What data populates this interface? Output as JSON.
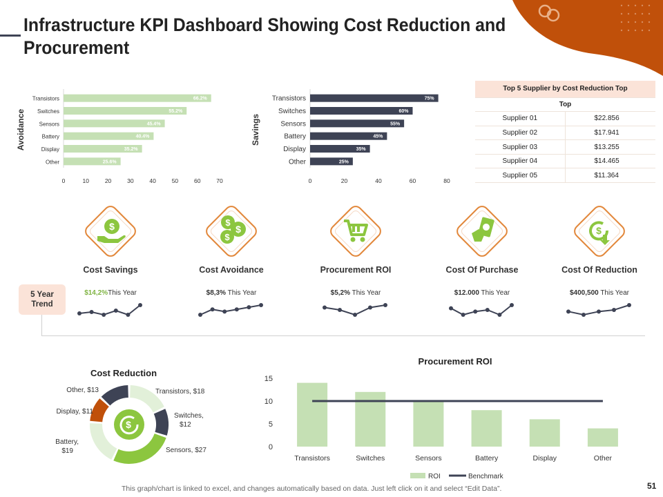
{
  "title": "Infrastructure KPI Dashboard Showing Cost Reduction and Procurement",
  "colors": {
    "accent": "#c0500a",
    "green": "#a9d18e",
    "lightGreen": "#c5e0b4",
    "navy": "#3e4355",
    "peach": "#fbe3d8",
    "orangeBorder": "#e2873a"
  },
  "chart_data": [
    {
      "type": "bar",
      "orientation": "horizontal",
      "ylabel": "Avoidance",
      "categories": [
        "Transistors",
        "Switches",
        "Sensors",
        "Battery",
        "Display",
        "Other"
      ],
      "values": [
        66.2,
        55.2,
        45.4,
        40.4,
        35.2,
        25.6
      ],
      "data_labels": [
        "66.2%",
        "55.2%",
        "45.4%",
        "40.4%",
        "35.2%",
        "25.6%"
      ],
      "xticks": [
        "0",
        "10",
        "20",
        "30",
        "40",
        "50",
        "60",
        "70"
      ],
      "xlim": [
        0,
        70
      ],
      "color": "#c5e0b4"
    },
    {
      "type": "bar",
      "orientation": "horizontal",
      "ylabel": "Savings",
      "categories": [
        "Transistors",
        "Switches",
        "Sensors",
        "Battery",
        "Display",
        "Other"
      ],
      "values": [
        75,
        60,
        55,
        45,
        35,
        25
      ],
      "data_labels": [
        "75%",
        "60%",
        "55%",
        "45%",
        "35%",
        "25%"
      ],
      "xticks": [
        "0",
        "20",
        "40",
        "60",
        "80"
      ],
      "xlim": [
        0,
        80
      ],
      "color": "#3e4355"
    },
    {
      "type": "pie",
      "title": "Cost Reduction",
      "slices": [
        {
          "label": "Transistors, $18",
          "value": 18,
          "color": "#e2f0d9"
        },
        {
          "label": "Switches, $12",
          "value": 12,
          "color": "#3e4355"
        },
        {
          "label": "Sensors, $27",
          "value": 27,
          "color": "#8cc63f"
        },
        {
          "label": "Battery, $19",
          "value": 19,
          "color": "#e2f0d9"
        },
        {
          "label": "Display, $11",
          "value": 11,
          "color": "#c0500a"
        },
        {
          "label": "Other, $13",
          "value": 13,
          "color": "#3e4355"
        }
      ]
    },
    {
      "type": "bar",
      "title": "Procurement ROI",
      "categories": [
        "Transistors",
        "Switches",
        "Sensors",
        "Battery",
        "Display",
        "Other"
      ],
      "series": [
        {
          "name": "ROI",
          "type": "bar",
          "values": [
            14,
            12,
            10,
            8,
            6,
            4
          ],
          "color": "#c5e0b4"
        },
        {
          "name": "Benchmark",
          "type": "line",
          "values": [
            10,
            10,
            10,
            10,
            10,
            10
          ],
          "color": "#3e4355"
        }
      ],
      "yticks": [
        "0",
        "5",
        "10",
        "15"
      ],
      "ylim": [
        0,
        15
      ]
    }
  ],
  "supplier_table": {
    "title": "Top 5 Supplier by Cost Reduction Top",
    "subheader": "Top",
    "rows": [
      {
        "name": "Supplier 01",
        "value": "$22.856"
      },
      {
        "name": "Supplier 02",
        "value": "$17.941"
      },
      {
        "name": "Supplier 03",
        "value": "$13.255"
      },
      {
        "name": "Supplier 04",
        "value": "$14.465"
      },
      {
        "name": "Supplier 05",
        "value": "$11.364"
      }
    ]
  },
  "kpis": [
    {
      "label": "Cost Savings",
      "value": "$14,2%",
      "suffix": "This Year",
      "icon": "hand-dollar-icon",
      "trend": [
        4,
        5,
        3,
        6,
        3,
        10
      ]
    },
    {
      "label": "Cost Avoidance",
      "value": "$8,3%",
      "suffix": "This Year",
      "icon": "coins-icon",
      "trend": [
        2,
        7,
        5,
        7,
        9,
        11
      ]
    },
    {
      "label": "Procurement ROI",
      "value": "$5,2%",
      "suffix": "This Year",
      "icon": "cart-icon",
      "trend": [
        7,
        6,
        4,
        7,
        8
      ]
    },
    {
      "label": "Cost Of Purchase",
      "value": "$12.000",
      "suffix": "This Year",
      "icon": "cash-icon",
      "trend": [
        8,
        4,
        6,
        7,
        4,
        10
      ]
    },
    {
      "label": "Cost Of Reduction",
      "value": "$400,500",
      "suffix": "This Year",
      "icon": "dollar-down-icon",
      "trend": [
        6,
        4,
        6,
        7,
        10
      ]
    }
  ],
  "trend_label": "5 Year Trend",
  "footnote": "This graph/chart is linked to excel, and changes automatically based on data. Just left click on it and select “Edit Data”.",
  "page_number": "51"
}
